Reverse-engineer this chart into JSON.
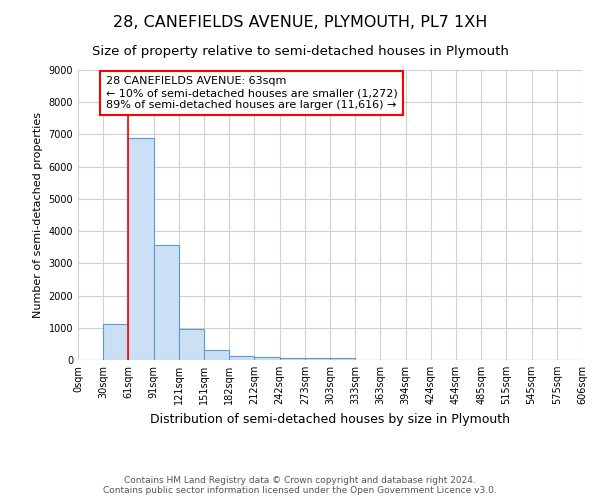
{
  "title": "28, CANEFIELDS AVENUE, PLYMOUTH, PL7 1XH",
  "subtitle": "Size of property relative to semi-detached houses in Plymouth",
  "xlabel": "Distribution of semi-detached houses by size in Plymouth",
  "ylabel": "Number of semi-detached properties",
  "footnote1": "Contains HM Land Registry data © Crown copyright and database right 2024.",
  "footnote2": "Contains public sector information licensed under the Open Government Licence v3.0.",
  "bin_labels": [
    "0sqm",
    "30sqm",
    "61sqm",
    "91sqm",
    "121sqm",
    "151sqm",
    "182sqm",
    "212sqm",
    "242sqm",
    "273sqm",
    "303sqm",
    "333sqm",
    "363sqm",
    "394sqm",
    "424sqm",
    "454sqm",
    "485sqm",
    "515sqm",
    "545sqm",
    "575sqm",
    "606sqm"
  ],
  "bar_values": [
    0,
    1120,
    6900,
    3580,
    970,
    320,
    120,
    80,
    60,
    50,
    50,
    0,
    0,
    0,
    0,
    0,
    0,
    0,
    0,
    0
  ],
  "bar_color": "#cce0f5",
  "bar_edge_color": "#5b9bd5",
  "property_line_x": 2,
  "annotation_label": "28 CANEFIELDS AVENUE: 63sqm",
  "annotation_line1": "← 10% of semi-detached houses are smaller (1,272)",
  "annotation_line2": "89% of semi-detached houses are larger (11,616) →",
  "annotation_box_color": "white",
  "annotation_box_edge": "red",
  "ylim": [
    0,
    9000
  ],
  "yticks": [
    0,
    1000,
    2000,
    3000,
    4000,
    5000,
    6000,
    7000,
    8000,
    9000
  ],
  "grid_color": "#d0d0d0",
  "background_color": "white",
  "title_fontsize": 11.5,
  "subtitle_fontsize": 9.5,
  "ylabel_fontsize": 8,
  "xlabel_fontsize": 9,
  "tick_fontsize": 7,
  "footnote_fontsize": 6.5,
  "annotation_fontsize": 8
}
